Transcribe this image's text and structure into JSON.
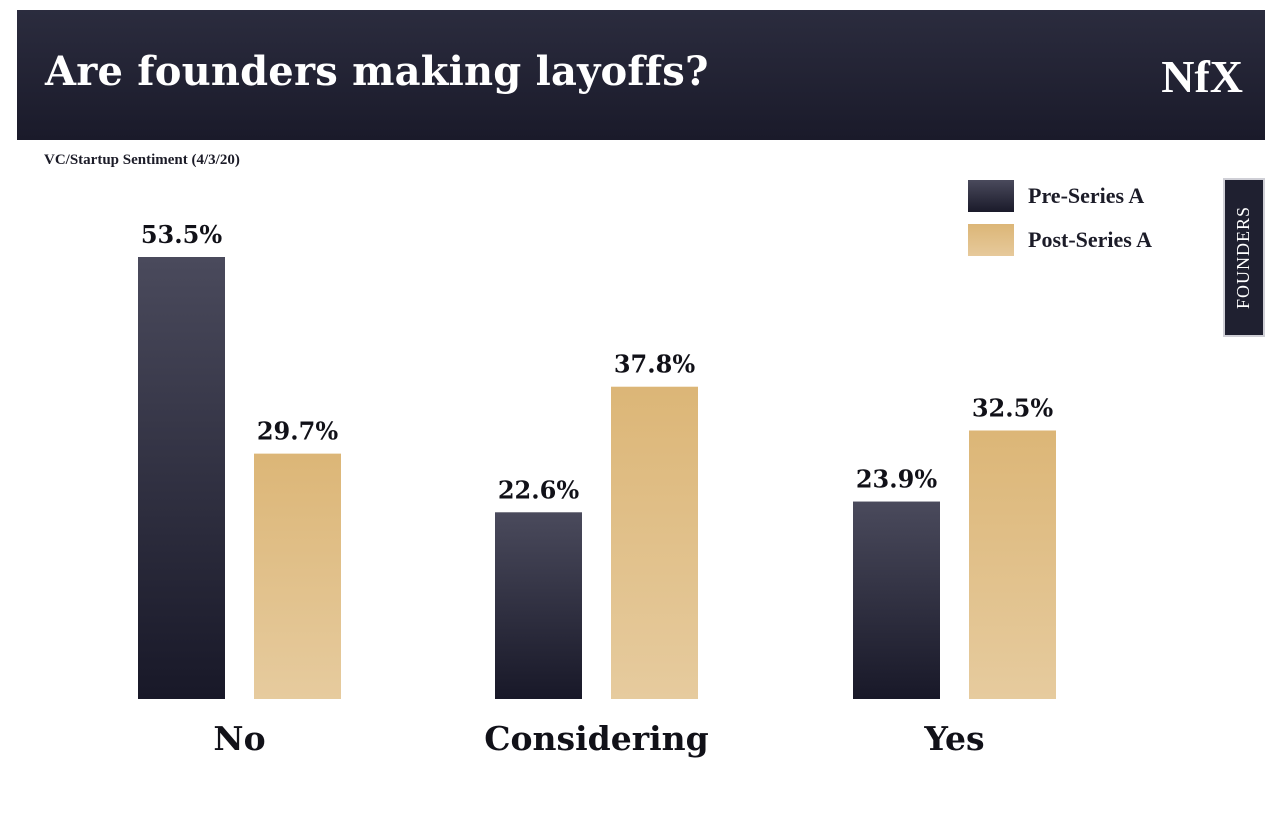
{
  "header": {
    "title": "Are founders making layoffs?",
    "logo_text": "NfX"
  },
  "subtitle": "VC/Startup Sentiment (4/3/20)",
  "side_tab": {
    "label": "FOUNDERS"
  },
  "colors": {
    "header_bg": "#1f2030",
    "pre_series_a": "#1f2030",
    "post_series_a": "#dcb677"
  },
  "chart_data": {
    "type": "bar",
    "categories": [
      "No",
      "Considering",
      "Yes"
    ],
    "series": [
      {
        "name": "Pre-Series A",
        "values": [
          53.5,
          22.6,
          23.9
        ],
        "labels": [
          "53.5%",
          "22.6%",
          "23.9%"
        ]
      },
      {
        "name": "Post-Series A",
        "values": [
          29.7,
          37.8,
          32.5
        ],
        "labels": [
          "29.7%",
          "37.8%",
          "32.5%"
        ]
      }
    ],
    "title": "Are founders making layoffs?",
    "subtitle": "VC/Startup Sentiment (4/3/20)",
    "unit": "%",
    "ylim": [
      0,
      53.5
    ],
    "grid": false,
    "legend_position": "top-right"
  }
}
